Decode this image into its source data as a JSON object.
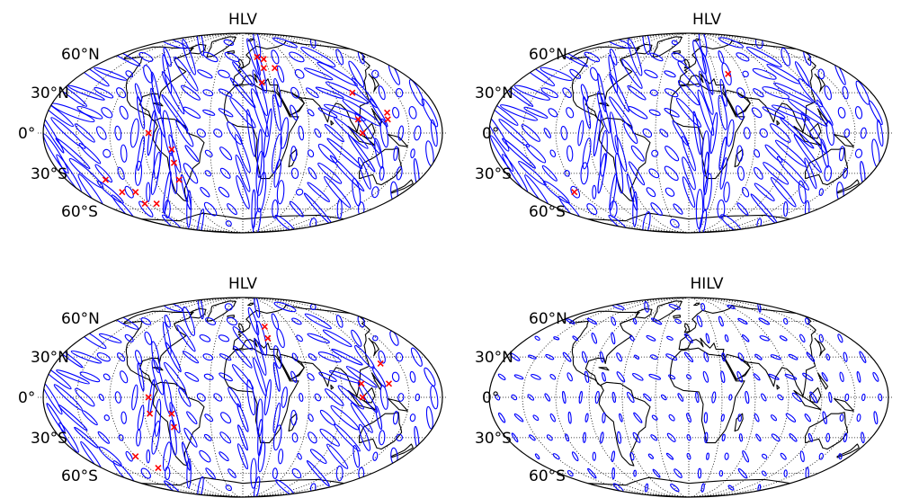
{
  "figure": {
    "projection": "mollweide",
    "grid_line_style": "dotted",
    "colors": {
      "ellipse": "#0000ff",
      "cross": "#ff0000",
      "coast": "#000000",
      "grid": "#000000"
    }
  },
  "panels": [
    {
      "title": "HLV",
      "lat_labels": [
        "60°N",
        "30°N",
        "0°",
        "30°S",
        "60°S"
      ],
      "crosses": [
        [
          -140,
          -35
        ],
        [
          -135,
          -45
        ],
        [
          -120,
          -45
        ],
        [
          -125,
          -55
        ],
        [
          -110,
          -55
        ],
        [
          -85,
          0
        ],
        [
          -65,
          -12
        ],
        [
          -65,
          -22
        ],
        [
          -65,
          -35
        ],
        [
          20,
          60
        ],
        [
          28,
          58
        ],
        [
          25,
          50
        ],
        [
          38,
          50
        ],
        [
          20,
          38
        ],
        [
          108,
          30
        ],
        [
          133,
          15
        ],
        [
          132,
          10
        ],
        [
          105,
          10
        ],
        [
          108,
          0
        ]
      ],
      "ellipse_scale": 1.0
    },
    {
      "title": "HLV",
      "lat_labels": [
        "60°N",
        "30°N",
        "0°",
        "30°S",
        "60°S"
      ],
      "crosses": [
        [
          -128,
          -45
        ],
        [
          44,
          45
        ]
      ],
      "ellipse_scale": 0.95
    },
    {
      "title": "HLV",
      "lat_labels": [
        "60°N",
        "30°N",
        "0°",
        "30°S",
        "60°S"
      ],
      "crosses": [
        [
          -120,
          -45
        ],
        [
          -108,
          -55
        ],
        [
          -85,
          0
        ],
        [
          -85,
          -12
        ],
        [
          -65,
          -12
        ],
        [
          -65,
          -22
        ],
        [
          28,
          55
        ],
        [
          28,
          45
        ],
        [
          108,
          10
        ],
        [
          132,
          25
        ],
        [
          133,
          10
        ],
        [
          108,
          0
        ]
      ],
      "ellipse_scale": 0.8
    },
    {
      "title": "HILV",
      "lat_labels": [
        "60°N",
        "30°N",
        "0°",
        "30°S",
        "60°S"
      ],
      "crosses": [],
      "ellipse_scale": 0.3
    }
  ]
}
